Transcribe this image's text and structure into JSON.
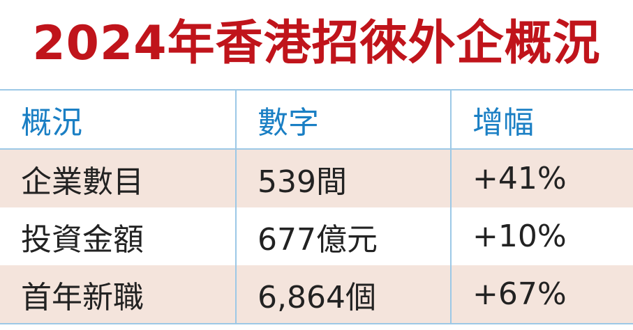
{
  "title": "2024年香港招徠外企概況",
  "table": {
    "header": [
      "概況",
      "數字",
      "增幅"
    ],
    "rows": [
      [
        "企業數目",
        "539間",
        "+41%"
      ],
      [
        "投資金額",
        "677億元",
        "+10%"
      ],
      [
        "首年新職",
        "6,864個",
        "+67%"
      ]
    ]
  }
}
